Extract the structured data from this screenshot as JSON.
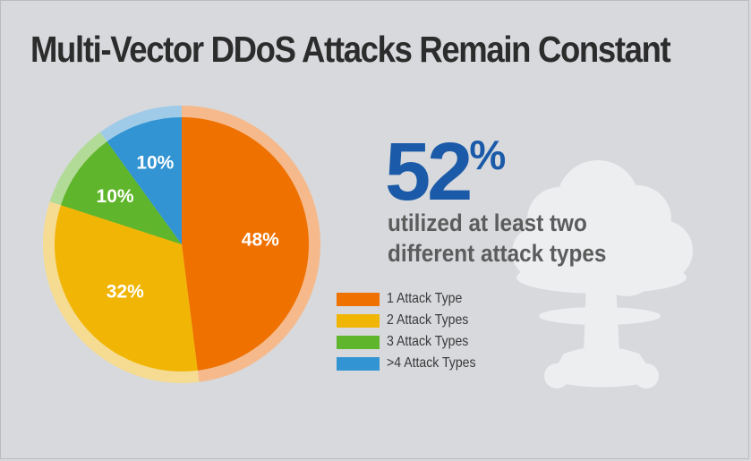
{
  "title": "Multi-Vector DDoS Attacks Remain Constant",
  "headline": {
    "number": "52",
    "percent_sign": "%",
    "text": "utilized at least two different attack types"
  },
  "chart_data": {
    "type": "pie",
    "title": "Multi-Vector DDoS Attacks Remain Constant",
    "legend_position": "right",
    "slices": [
      {
        "label": "1 Attack Type",
        "value": 48,
        "value_label": "48%",
        "color": "#ef7100"
      },
      {
        "label": "2 Attack Types",
        "value": 32,
        "value_label": "32%",
        "color": "#f1b505"
      },
      {
        "label": "3 Attack Types",
        "value": 10,
        "value_label": "10%",
        "color": "#5fb52b"
      },
      {
        "label": ">4 Attack Types",
        "value": 10,
        "value_label": "10%",
        "color": "#3294d2"
      }
    ],
    "ring_colors": [
      "#f5b98b",
      "#f6dc92",
      "#b3db98",
      "#9fcbe8"
    ]
  },
  "decoration": {
    "icon": "mushroom-cloud-icon",
    "cloud_color": "#eceef0"
  }
}
